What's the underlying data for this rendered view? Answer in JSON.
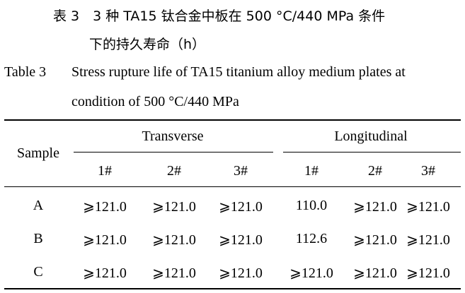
{
  "caption_zh": {
    "line1": "表 3　3 种 TA15 钛合金中板在 500 °C/440 MPa 条件",
    "line2": "下的持久寿命（h）"
  },
  "caption_en": {
    "label": "Table 3",
    "line1": "Stress rupture life of TA15 titanium alloy medium plates at",
    "line2": "condition of 500 °C/440 MPa"
  },
  "table": {
    "header": {
      "sample": "Sample",
      "group1": "Transverse",
      "group2": "Longitudinal",
      "sub": [
        "1#",
        "2#",
        "3#",
        "1#",
        "2#",
        "3#"
      ]
    },
    "rows": [
      {
        "sample": "A",
        "values": [
          "⩾121.0",
          "⩾121.0",
          "⩾121.0",
          "110.0",
          "⩾121.0",
          "⩾121.0"
        ]
      },
      {
        "sample": "B",
        "values": [
          "⩾121.0",
          "⩾121.0",
          "⩾121.0",
          "112.6",
          "⩾121.0",
          "⩾121.0"
        ]
      },
      {
        "sample": "C",
        "values": [
          "⩾121.0",
          "⩾121.0",
          "⩾121.0",
          "⩾121.0",
          "⩾121.0",
          "⩾121.0"
        ]
      }
    ]
  }
}
